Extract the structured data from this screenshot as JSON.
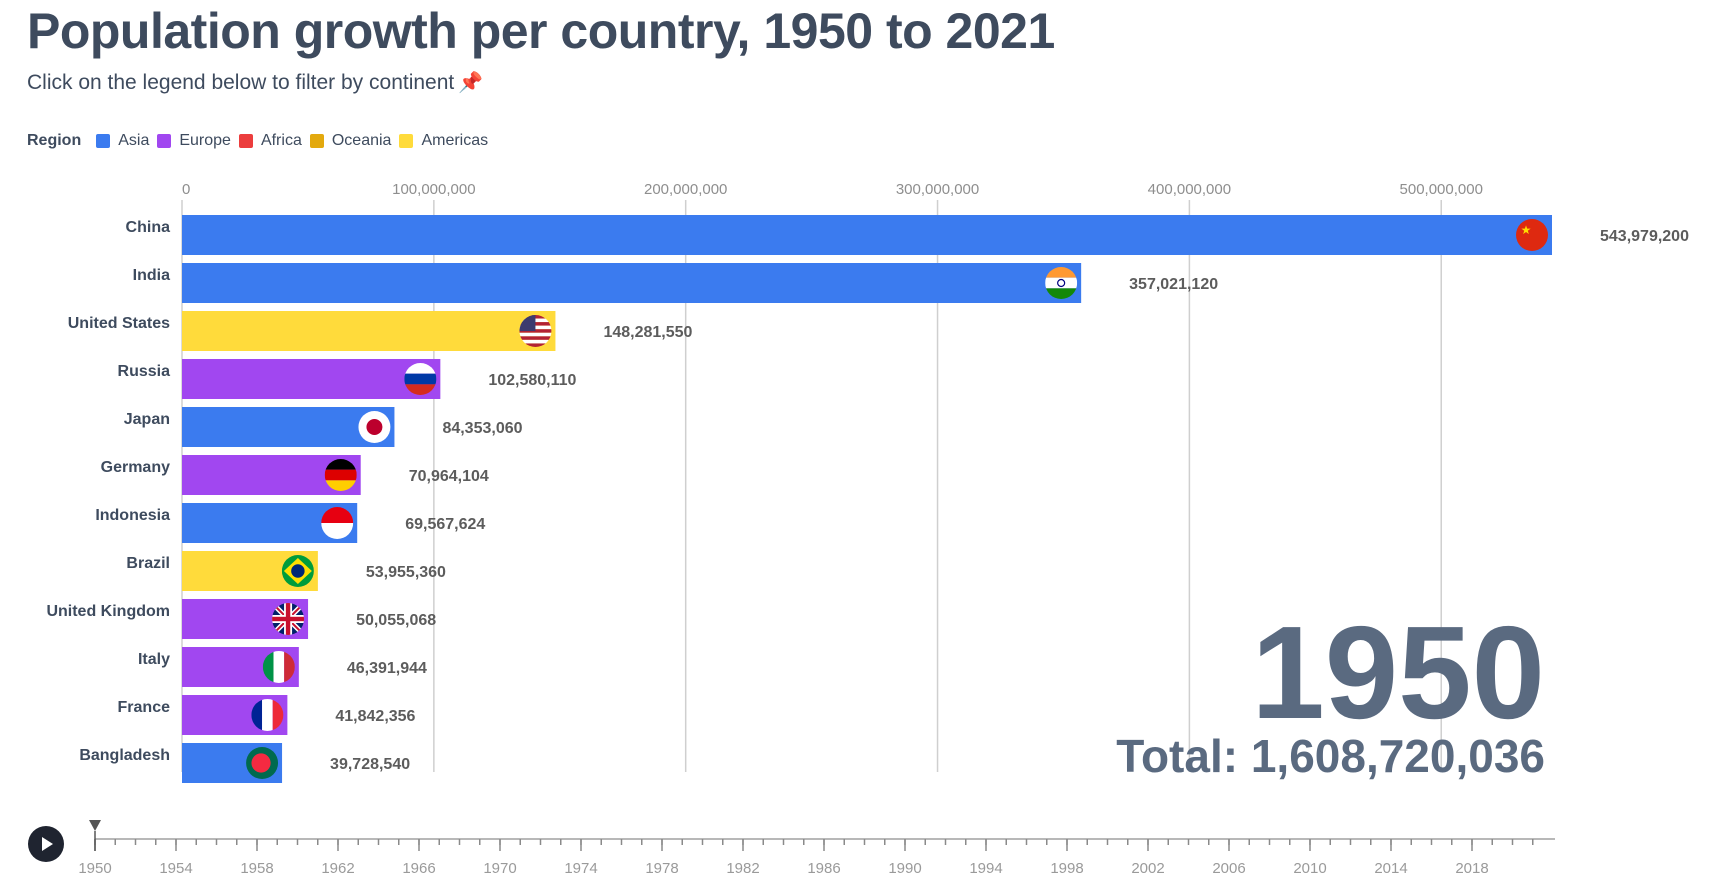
{
  "header": {
    "title": "Population growth per country, 1950 to 2021",
    "subtitle": "Click on the legend below to filter by continent",
    "subtitle_icon": "pushpin-icon"
  },
  "legend": {
    "title": "Region",
    "items": [
      {
        "label": "Asia",
        "color": "#3b7bef"
      },
      {
        "label": "Europe",
        "color": "#a147f0"
      },
      {
        "label": "Africa",
        "color": "#ec3d3d"
      },
      {
        "label": "Oceania",
        "color": "#e3a90e"
      },
      {
        "label": "Americas",
        "color": "#ffdb3b"
      }
    ]
  },
  "chart_data": {
    "type": "bar",
    "orientation": "horizontal",
    "categories": [
      "China",
      "India",
      "United States",
      "Russia",
      "Japan",
      "Germany",
      "Indonesia",
      "Brazil",
      "United Kingdom",
      "Italy",
      "France",
      "Bangladesh"
    ],
    "regions": [
      "Asia",
      "Asia",
      "Americas",
      "Europe",
      "Asia",
      "Europe",
      "Asia",
      "Americas",
      "Europe",
      "Europe",
      "Europe",
      "Asia"
    ],
    "values": [
      543979200,
      357021120,
      148281550,
      102580110,
      84353060,
      70964104,
      69567624,
      53955360,
      50055068,
      46391944,
      41842356,
      39728540
    ],
    "value_labels": [
      "543,979,200",
      "357,021,120",
      "148,281,550",
      "102,580,110",
      "84,353,060",
      "70,964,104",
      "69,567,624",
      "53,955,360",
      "50,055,068",
      "46,391,944",
      "41,842,356",
      "39,728,540"
    ],
    "flag_icons": [
      "china-flag-icon",
      "india-flag-icon",
      "usa-flag-icon",
      "russia-flag-icon",
      "japan-flag-icon",
      "germany-flag-icon",
      "indonesia-flag-icon",
      "brazil-flag-icon",
      "uk-flag-icon",
      "italy-flag-icon",
      "france-flag-icon",
      "bangladesh-flag-icon"
    ],
    "x_ticks": [
      0,
      100000000,
      200000000,
      300000000,
      400000000,
      500000000
    ],
    "x_tick_labels": [
      "0",
      "100,000,000",
      "200,000,000",
      "300,000,000",
      "400,000,000",
      "500,000,000"
    ],
    "xlim": [
      0,
      543979200
    ],
    "grid": true,
    "year": "1950",
    "total_label": "Total: 1,608,720,036"
  },
  "timeline": {
    "play_icon": "play-icon",
    "start_year": 1950,
    "end_year": 2021,
    "current_year": 1950,
    "tick_labels": [
      "1950",
      "1954",
      "1958",
      "1962",
      "1966",
      "1970",
      "1974",
      "1978",
      "1982",
      "1986",
      "1990",
      "1994",
      "1998",
      "2002",
      "2006",
      "2010",
      "2014",
      "2018"
    ]
  }
}
